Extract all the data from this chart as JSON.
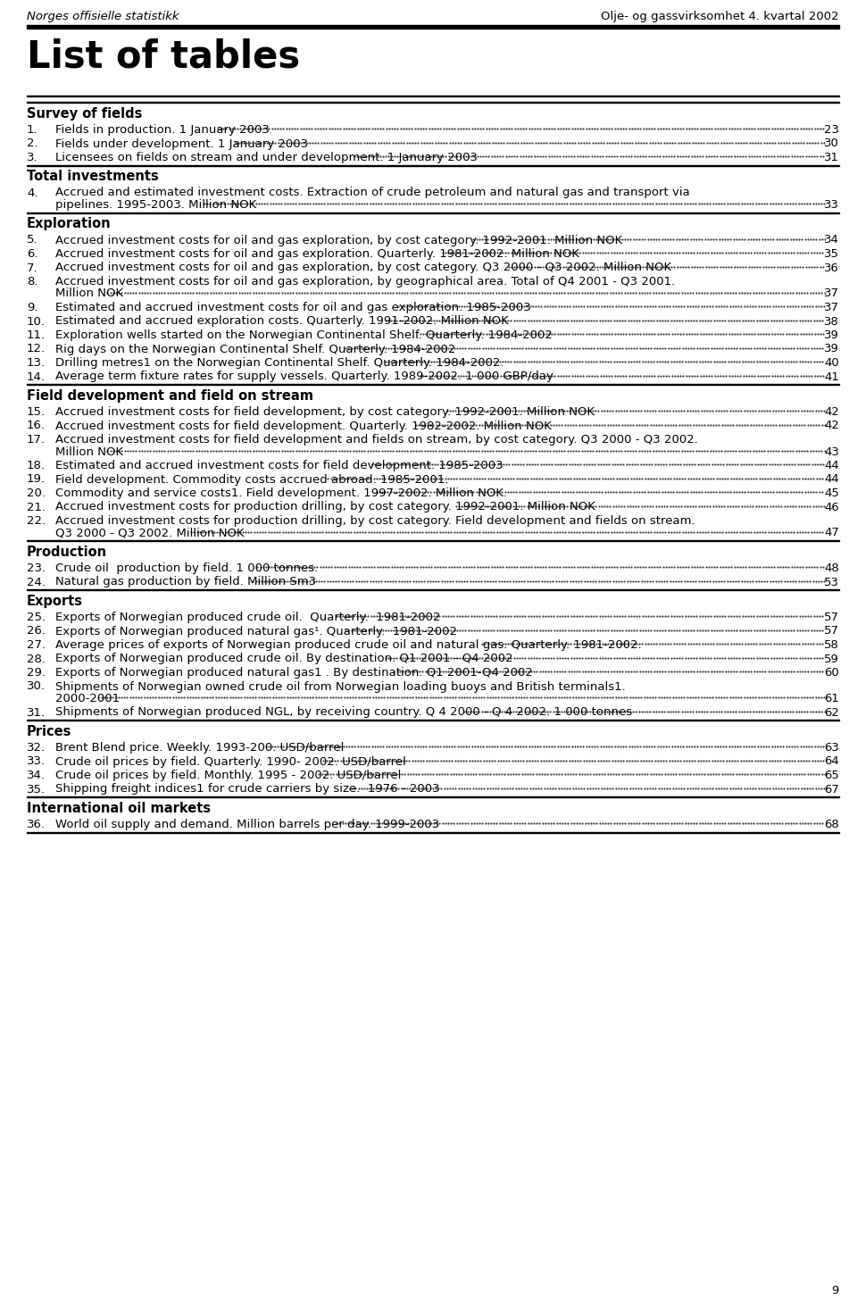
{
  "header_left": "Norges offisielle statistikk",
  "header_right": "Olje- og gassvirksomhet 4. kvartal 2002",
  "page_title": "List of tables",
  "sections": [
    {
      "title": "Survey of fields",
      "items": [
        {
          "num": "1.",
          "text": "Fields in production. 1 January 2003",
          "page": "23",
          "wrap": false
        },
        {
          "num": "2.",
          "text": "Fields under development. 1 January 2003",
          "page": "30",
          "wrap": false
        },
        {
          "num": "3.",
          "text": "Licensees on fields on stream and under development. 1 January 2003",
          "page": "31",
          "wrap": false
        }
      ]
    },
    {
      "title": "Total investments",
      "items": [
        {
          "num": "4.",
          "text": "Accrued and estimated investment costs. Extraction of crude petroleum and natural gas and transport via",
          "text2": "pipelines. 1995-2003. Million NOK",
          "page": "33",
          "wrap": true
        }
      ]
    },
    {
      "title": "Exploration",
      "items": [
        {
          "num": "5.",
          "text": "Accrued investment costs for oil and gas exploration, by cost category. 1992-2001. Million NOK",
          "page": "34",
          "wrap": false
        },
        {
          "num": "6.",
          "text": "Accrued investment costs for oil and gas exploration. Quarterly. 1981-2002. Million NOK",
          "page": "35",
          "wrap": false
        },
        {
          "num": "7.",
          "text": "Accrued investment costs for oil and gas exploration, by cost category. Q3 2000 - Q3 2002. Million NOK",
          "page": "36",
          "wrap": false
        },
        {
          "num": "8.",
          "text": "Accrued investment costs for oil and gas exploration, by geographical area. Total of Q4 2001 - Q3 2001.",
          "text2": "Million NOK",
          "page": "37",
          "wrap": true
        },
        {
          "num": "9.",
          "text": "Estimated and accrued investment costs for oil and gas exploration. 1985-2003",
          "page": "37",
          "wrap": false
        },
        {
          "num": "10.",
          "text": "Estimated and accrued exploration costs. Quarterly. 1991-2002. Million NOK",
          "page": "38",
          "wrap": false
        },
        {
          "num": "11.",
          "text": "Exploration wells started on the Norwegian Continental Shelf. Quarterly. 1984-2002",
          "page": "39",
          "wrap": false
        },
        {
          "num": "12.",
          "text": "Rig days on the Norwegian Continental Shelf. Quarterly. 1984-2002",
          "page": "39",
          "wrap": false
        },
        {
          "num": "13.",
          "text": "Drilling metres1 on the Norwegian Continental Shelf. Quarterly. 1984-2002.",
          "page": "40",
          "wrap": false
        },
        {
          "num": "14.",
          "text": "Average term fixture rates for supply vessels. Quarterly. 1989-2002. 1 000 GBP/day",
          "page": "41",
          "wrap": false
        }
      ]
    },
    {
      "title": "Field development and field on stream",
      "items": [
        {
          "num": "15.",
          "text": "Accrued investment costs for field development, by cost category. 1992-2001. Million NOK",
          "page": "42",
          "wrap": false
        },
        {
          "num": "16.",
          "text": "Accrued investment costs for field development. Quarterly. 1982-2002. Million NOK",
          "page": "42",
          "wrap": false
        },
        {
          "num": "17.",
          "text": "Accrued investment costs for field development and fields on stream, by cost category. Q3 2000 - Q3 2002.",
          "text2": "Million NOK",
          "page": "43",
          "wrap": true
        },
        {
          "num": "18.",
          "text": "Estimated and accrued investment costs for field development. 1985-2003",
          "page": "44",
          "wrap": false
        },
        {
          "num": "19.",
          "text": "Field development. Commodity costs accrued abroad. 1985-2001.",
          "page": "44",
          "wrap": false
        },
        {
          "num": "20.",
          "text": "Commodity and service costs1. Field development. 1997-2002. Million NOK.",
          "page": "45",
          "wrap": false
        },
        {
          "num": "21.",
          "text": "Accrued investment costs for production drilling, by cost category. 1992-2001. Million NOK",
          "page": "46",
          "wrap": false
        },
        {
          "num": "22.",
          "text": "Accrued investment costs for production drilling, by cost category. Field development and fields on stream.",
          "text2": "Q3 2000 - Q3 2002. Million NOK",
          "page": "47",
          "wrap": true
        }
      ]
    },
    {
      "title": "Production",
      "items": [
        {
          "num": "23.",
          "text": "Crude oil  production by field. 1 000 tonnes.",
          "page": "48",
          "wrap": false
        },
        {
          "num": "24.",
          "text": "Natural gas production by field. Million Sm3",
          "page": "53",
          "wrap": false
        }
      ]
    },
    {
      "title": "Exports",
      "items": [
        {
          "num": "25.",
          "text": "Exports of Norwegian produced crude oil.  Quarterly.  1981-2002",
          "page": "57",
          "wrap": false
        },
        {
          "num": "26.",
          "text": "Exports of Norwegian produced natural gas¹. Quarterly.  1981-2002",
          "page": "57",
          "wrap": false
        },
        {
          "num": "27.",
          "text": "Average prices of exports of Norwegian produced crude oil and natural gas. Quarterly. 1981-2002.",
          "page": "58",
          "wrap": false
        },
        {
          "num": "28.",
          "text": "Exports of Norwegian produced crude oil. By destination. Q1 2001 - Q4 2002",
          "page": "59",
          "wrap": false
        },
        {
          "num": "29.",
          "text": "Exports of Norwegian produced natural gas1 . By destination. Q1 2001-Q4 2002",
          "page": "60",
          "wrap": false
        },
        {
          "num": "30.",
          "text": "Shipments of Norwegian owned crude oil from Norwegian loading buoys and British terminals1.",
          "text2": "2000-2001",
          "page": "61",
          "wrap": true
        },
        {
          "num": "31.",
          "text": "Shipments of Norwegian produced NGL, by receiving country. Q 4 2000 - Q 4 2002. 1 000 tonnes",
          "page": "62",
          "wrap": false
        }
      ]
    },
    {
      "title": "Prices",
      "items": [
        {
          "num": "32.",
          "text": "Brent Blend price. Weekly. 1993-200. USD/barrel",
          "page": "63",
          "wrap": false
        },
        {
          "num": "33.",
          "text": "Crude oil prices by field. Quarterly. 1990- 2002. USD/barrel",
          "page": "64",
          "wrap": false
        },
        {
          "num": "34.",
          "text": "Crude oil prices by field. Monthly. 1995 - 2002. USD/barrel",
          "page": "65",
          "wrap": false
        },
        {
          "num": "35.",
          "text": "Shipping freight indices1 for crude carriers by size.  1976 - 2003",
          "page": "67",
          "wrap": false
        }
      ]
    },
    {
      "title": "International oil markets",
      "items": [
        {
          "num": "36.",
          "text": "World oil supply and demand. Million barrels per day. 1999-2003",
          "page": "68",
          "wrap": false
        }
      ]
    }
  ],
  "footer_page": "9",
  "bg_color": "#ffffff"
}
